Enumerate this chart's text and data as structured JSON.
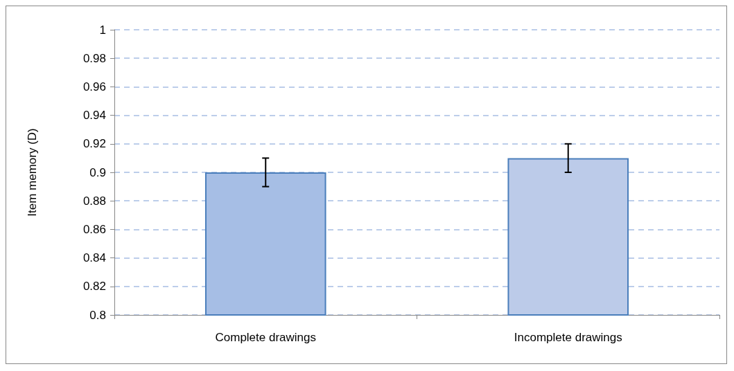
{
  "chart_data": {
    "type": "bar",
    "ylabel": "Item memory (D)",
    "categories": [
      "Complete drawings",
      "Incomplete drawings"
    ],
    "values": [
      0.9,
      0.91
    ],
    "errors": [
      0.01,
      0.01
    ],
    "colors": [
      "#a6bee5",
      "#bccbe9"
    ],
    "ylim": [
      0.8,
      1
    ],
    "yticks": [
      0.8,
      0.82,
      0.84,
      0.86,
      0.88,
      0.9,
      0.92,
      0.94,
      0.96,
      0.98,
      1
    ],
    "grid": "y"
  }
}
